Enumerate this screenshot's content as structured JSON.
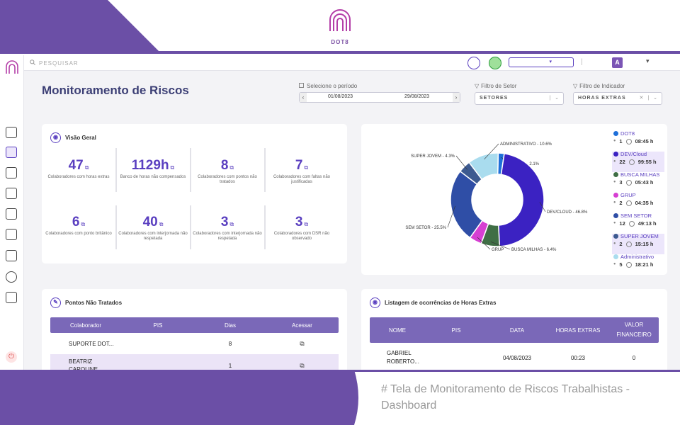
{
  "brand": {
    "name": "DOT8"
  },
  "caption": "# Tela de Monitoramento de Riscos Trabalhistas - Dashboard",
  "topbar": {
    "search_label": "PESQUISAR",
    "avatar_letter": "A"
  },
  "page": {
    "title": "Monitoramento de Riscos"
  },
  "filters": {
    "period_label": "Selecione o período",
    "date_start": "01/08/2023",
    "date_end": "29/08/2023",
    "sector_label": "Filtro de Setor",
    "sector_value": "SETORES",
    "indicator_label": "Filtro de Indicador",
    "indicator_value": "HORAS EXTRAS"
  },
  "overview": {
    "title": "Visão Geral",
    "kpis": [
      {
        "value": "47",
        "label": "Colaboradores com horas extras"
      },
      {
        "value": "1129h",
        "label": "Banco de horas não compensados"
      },
      {
        "value": "8",
        "label": "Colaboradores com pontos não tratados"
      },
      {
        "value": "7",
        "label": "Colaboradores com faltas não justificadas"
      },
      {
        "value": "6",
        "label": "Colaboradores com ponto britânico"
      },
      {
        "value": "40",
        "label": "Colaboradores com interjornada não respetada"
      },
      {
        "value": "3",
        "label": "Colaboradores com interjornada não respetada"
      },
      {
        "value": "3",
        "label": "Colaboradores com DSR não observado"
      }
    ]
  },
  "chart_data": {
    "type": "pie",
    "title": "",
    "series": [
      {
        "name": "DOT8",
        "value": 2.1,
        "label": "DOT8 - 2.1%",
        "color": "#1e6fd9"
      },
      {
        "name": "DEV/CLOUD",
        "value": 46.8,
        "label": "DEV/CLOUD - 46.8%",
        "color": "#3b22c2"
      },
      {
        "name": "BUSCA MILHAS",
        "value": 6.4,
        "label": "BUSCA MILHAS - 6.4%",
        "color": "#3f6e45"
      },
      {
        "name": "GRUP",
        "value": 4.3,
        "label": "GRUP",
        "color": "#d63fd2"
      },
      {
        "name": "SEM SETOR",
        "value": 25.5,
        "label": "SEM SETOR - 25.5%",
        "color": "#2f4ea6"
      },
      {
        "name": "SUPER JOVEM",
        "value": 4.3,
        "label": "SUPER JOVEM - 4.3%",
        "color": "#3d5a90"
      },
      {
        "name": "ADMINISTRATIVO",
        "value": 10.6,
        "label": "ADMINISTRATIVO - 10.6%",
        "color": "#a9dcee"
      }
    ]
  },
  "legend": [
    {
      "name": "DOT8",
      "count": "1",
      "hours": "08:45 h",
      "color": "#1e6fd9"
    },
    {
      "name": "DEV/Cloud",
      "count": "22",
      "hours": "99:55 h",
      "color": "#3b22c2"
    },
    {
      "name": "BUSCA MILHAS",
      "count": "3",
      "hours": "05:43 h",
      "color": "#3f6e45"
    },
    {
      "name": "GRUP",
      "count": "2",
      "hours": "04:35 h",
      "color": "#d63fd2"
    },
    {
      "name": "SEM SETOR",
      "count": "12",
      "hours": "49:13 h",
      "color": "#2f4ea6"
    },
    {
      "name": "SUPER JOVEM",
      "count": "2",
      "hours": "15:15 h",
      "color": "#3d5a90"
    },
    {
      "name": "Administrativo",
      "count": "5",
      "hours": "18:21 h",
      "color": "#a9dcee"
    }
  ],
  "pending": {
    "title": "Pontos Não Tratados",
    "columns": [
      "Colaborador",
      "PIS",
      "Dias",
      "Acessar"
    ],
    "rows": [
      {
        "name": "SUPORTE DOT...",
        "pis": "",
        "days": "8"
      },
      {
        "name": "BEATRIZ CAROLINE...",
        "pis": "",
        "days": "1"
      }
    ]
  },
  "overtime": {
    "title": "Listagem de ocorrências de Horas Extras",
    "columns": [
      "NOME",
      "PIS",
      "DATA",
      "HORAS EXTRAS",
      "VALOR FINANCEIRO"
    ],
    "rows": [
      {
        "name": "GABRIEL ROBERTO...",
        "pis": "",
        "date": "04/08/2023",
        "hours": "00:23",
        "value": "0"
      }
    ]
  }
}
